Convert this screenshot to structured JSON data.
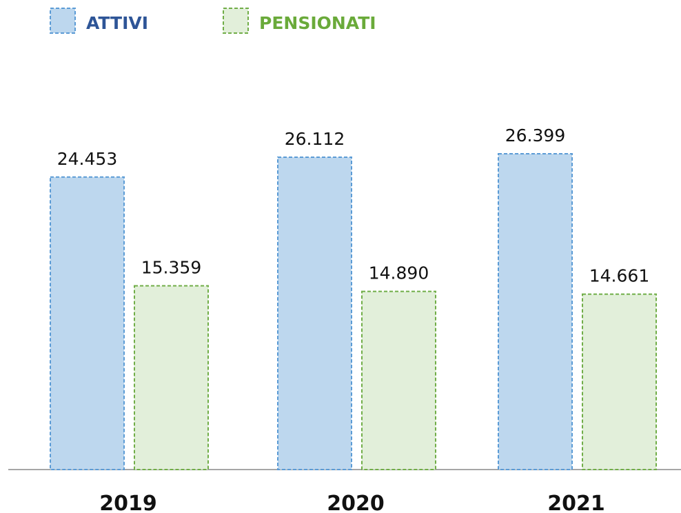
{
  "chart_data": {
    "type": "bar",
    "categories": [
      "2019",
      "2020",
      "2021"
    ],
    "series": [
      {
        "name": "ATTIVI",
        "color": "#bdd7ee",
        "values": [
          24453,
          26112,
          26399
        ],
        "value_labels": [
          "24.453",
          "26.112",
          "26.399"
        ]
      },
      {
        "name": "PENSIONATI",
        "color": "#e2efda",
        "values": [
          15359,
          14890,
          14661
        ],
        "value_labels": [
          "15.359",
          "14.890",
          "14.661"
        ]
      }
    ]
  }
}
